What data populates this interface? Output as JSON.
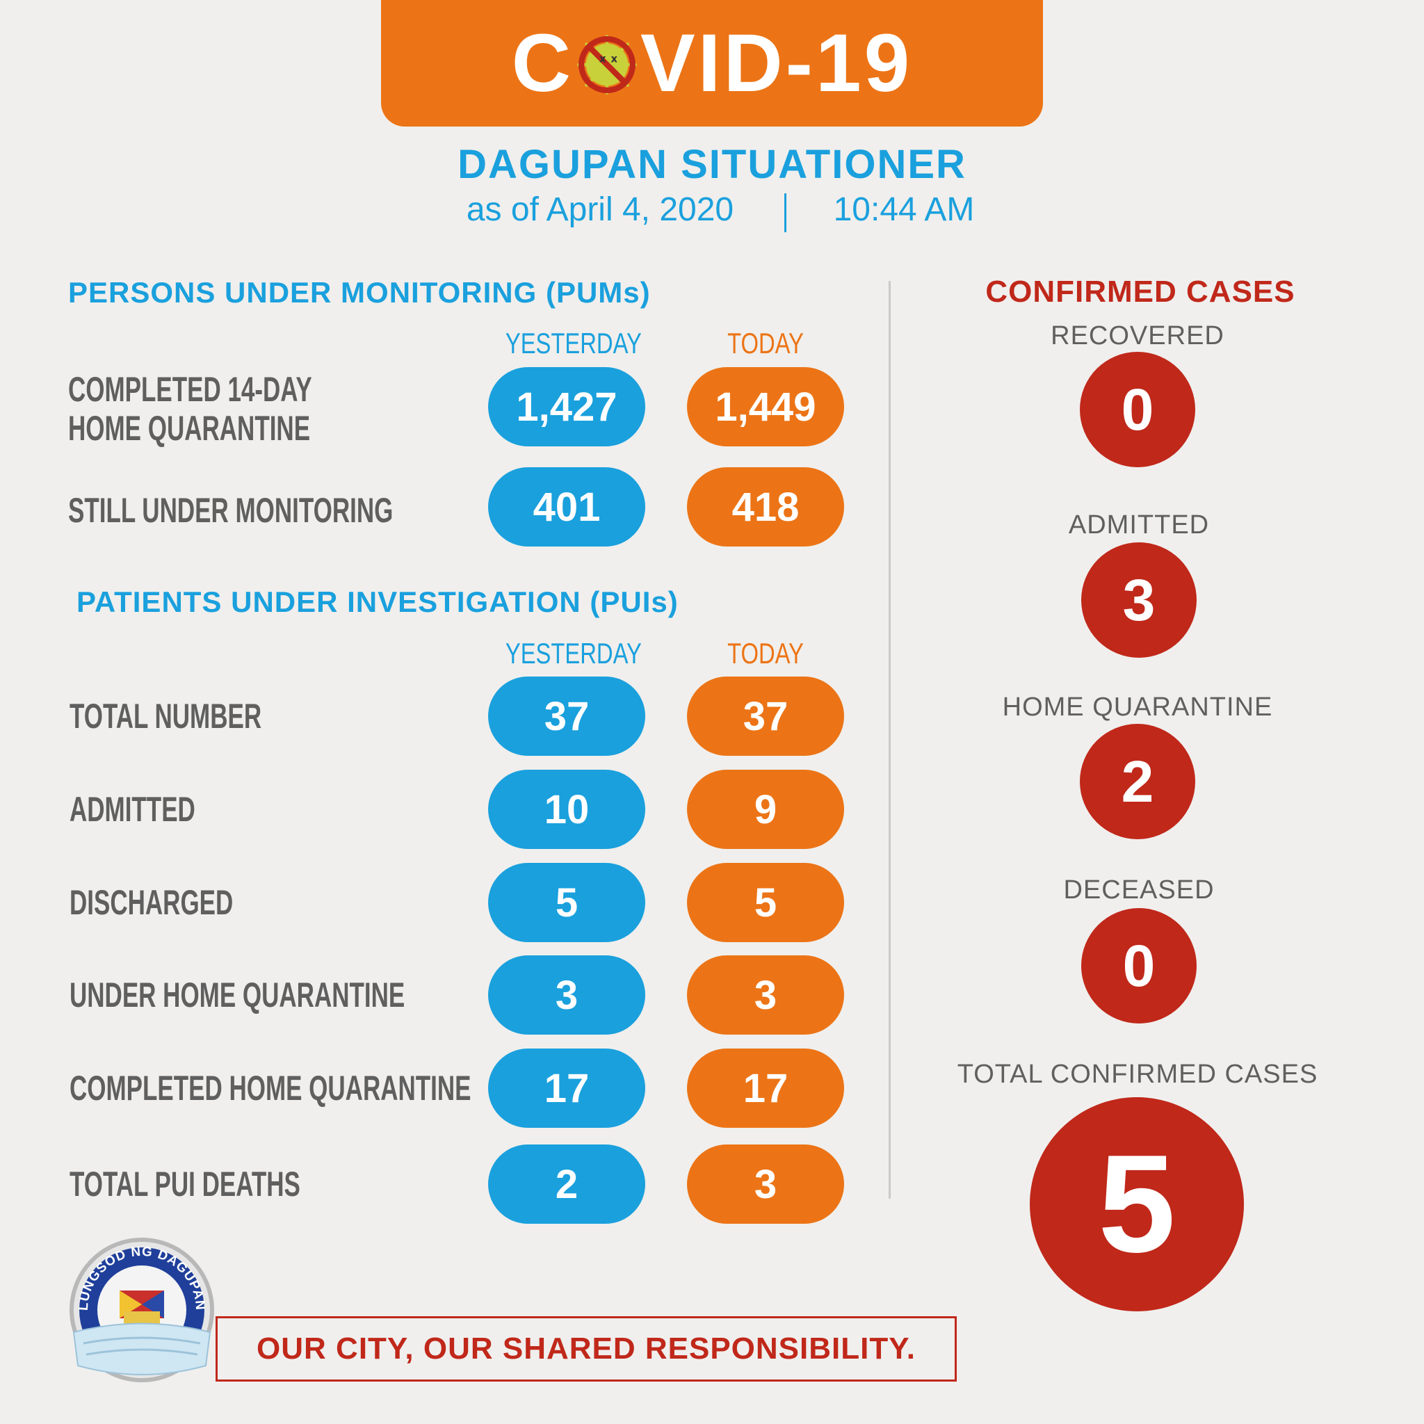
{
  "header": {
    "title_prefix": "C",
    "title_suffix": "VID-19",
    "subtitle": "DAGUPAN SITUATIONER",
    "as_of": "as of April 4, 2020",
    "time": "10:44 AM"
  },
  "pums": {
    "title": "PERSONS UNDER MONITORING (PUMs)",
    "col_yesterday": "YESTERDAY",
    "col_today": "TODAY",
    "rows": [
      {
        "label_line1": "COMPLETED 14-DAY",
        "label_line2": "HOME QUARANTINE",
        "yesterday": "1,427",
        "today": "1,449"
      },
      {
        "label_line1": "STILL UNDER MONITORING",
        "label_line2": "",
        "yesterday": "401",
        "today": "418"
      }
    ]
  },
  "puis": {
    "title": "PATIENTS UNDER INVESTIGATION (PUIs)",
    "col_yesterday": "YESTERDAY",
    "col_today": "TODAY",
    "rows": [
      {
        "label": "TOTAL NUMBER",
        "yesterday": "37",
        "today": "37"
      },
      {
        "label": "ADMITTED",
        "yesterday": "10",
        "today": "9"
      },
      {
        "label": "DISCHARGED",
        "yesterday": "5",
        "today": "5"
      },
      {
        "label": "UNDER HOME QUARANTINE",
        "yesterday": "3",
        "today": "3"
      },
      {
        "label": "COMPLETED HOME QUARANTINE",
        "yesterday": "17",
        "today": "17"
      },
      {
        "label": "TOTAL PUI DEATHS",
        "yesterday": "2",
        "today": "3"
      }
    ]
  },
  "confirmed": {
    "title": "CONFIRMED CASES",
    "items": [
      {
        "label": "RECOVERED",
        "value": "0"
      },
      {
        "label": "ADMITTED",
        "value": "3"
      },
      {
        "label": "HOME QUARANTINE",
        "value": "2"
      },
      {
        "label": "DECEASED",
        "value": "0"
      }
    ],
    "total_label": "TOTAL CONFIRMED CASES",
    "total_value": "5"
  },
  "footer": {
    "slogan": "OUR CITY, OUR SHARED RESPONSIBILITY.",
    "seal_text": "LUNGSOD NG DAGUPAN"
  },
  "colors": {
    "orange": "#ec7416",
    "blue": "#1aa0dd",
    "red": "#c0281a",
    "background": "#f0efed"
  }
}
